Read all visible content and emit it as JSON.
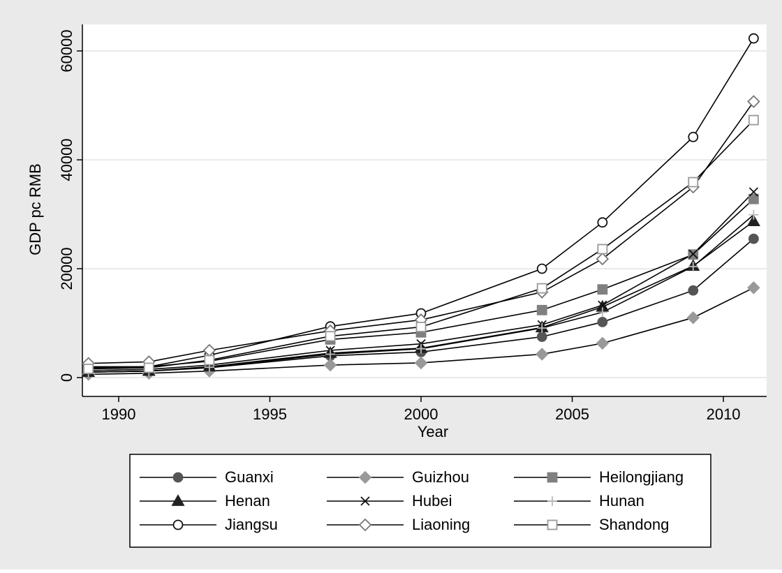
{
  "chart_data": {
    "type": "line",
    "x_label": "Year",
    "y_label": "GDP pc RMB",
    "x": [
      1989,
      1991,
      1993,
      1997,
      2000,
      2004,
      2006,
      2009,
      2011
    ],
    "xlim": [
      1988.8,
      2011.43
    ],
    "xticks": [
      1990,
      1995,
      2000,
      2005,
      2010
    ],
    "ylim": [
      -3460,
      64870
    ],
    "yticks": [
      0,
      20000,
      40000,
      60000
    ],
    "grid": true,
    "line_color": "#000000",
    "legend_position": "bottom",
    "series": [
      {
        "name": "Guanxi",
        "color": "#555555",
        "marker": "circle",
        "filled": true,
        "values": [
          1000,
          1200,
          1800,
          4000,
          4700,
          7500,
          10200,
          16000,
          25500
        ]
      },
      {
        "name": "Guizhou",
        "color": "#999999",
        "marker": "diamond",
        "filled": true,
        "values": [
          600,
          800,
          1200,
          2300,
          2700,
          4300,
          6300,
          11000,
          16500
        ]
      },
      {
        "name": "Heilongjiang",
        "color": "#808080",
        "marker": "square",
        "filled": true,
        "values": [
          1800,
          2000,
          3000,
          7000,
          8300,
          12400,
          16200,
          22600,
          32800
        ]
      },
      {
        "name": "Henan",
        "color": "#222222",
        "marker": "triangle",
        "filled": true,
        "values": [
          1000,
          1200,
          2000,
          4500,
          5400,
          9200,
          13000,
          20500,
          28700
        ]
      },
      {
        "name": "Hubei",
        "color": "#111111",
        "marker": "x",
        "filled": false,
        "values": [
          1300,
          1500,
          2300,
          5000,
          6200,
          9700,
          13300,
          22700,
          34100
        ]
      },
      {
        "name": "Hunan",
        "color": "#bbbbbb",
        "marker": "plus",
        "filled": false,
        "values": [
          1000,
          1200,
          1900,
          4300,
          5300,
          9100,
          12000,
          20400,
          29900
        ]
      },
      {
        "name": "Jiangsu",
        "color": "#111111",
        "marker": "circle",
        "filled": false,
        "values": [
          2000,
          2000,
          4100,
          9400,
          11800,
          20000,
          28500,
          44200,
          62300
        ]
      },
      {
        "name": "Liaoning",
        "color": "#777777",
        "marker": "diamond",
        "filled": false,
        "values": [
          2600,
          2900,
          5000,
          8600,
          10600,
          15700,
          21800,
          35000,
          50700
        ]
      },
      {
        "name": "Shandong",
        "color": "#999999",
        "marker": "square",
        "filled": false,
        "values": [
          1600,
          1800,
          3200,
          7600,
          9300,
          16400,
          23600,
          35900,
          47300
        ]
      }
    ]
  }
}
